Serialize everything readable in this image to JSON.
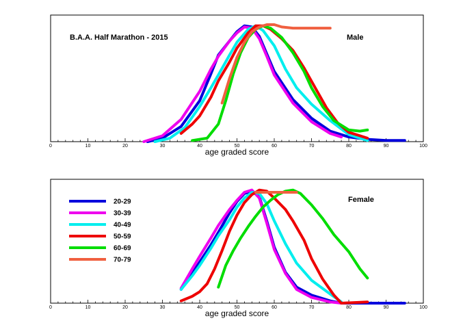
{
  "chart_data": [
    {
      "type": "line",
      "title": "B.A.A. Half Marathon - 2015",
      "panel_label": "Male",
      "xlabel": "age graded score",
      "ylabel": "",
      "xlim": [
        0,
        100
      ],
      "ylim": [
        0,
        1
      ],
      "x_ticks": [
        0,
        10,
        20,
        30,
        40,
        50,
        60,
        70,
        80,
        90,
        100
      ],
      "grid": false,
      "legend": null,
      "series": [
        {
          "name": "20-29",
          "color": "#0000dd",
          "points": [
            [
              26,
              0
            ],
            [
              30,
              0.03
            ],
            [
              35,
              0.13
            ],
            [
              40,
              0.35
            ],
            [
              43,
              0.58
            ],
            [
              45,
              0.74
            ],
            [
              48,
              0.86
            ],
            [
              50,
              0.94
            ],
            [
              52,
              0.99
            ],
            [
              54,
              0.98
            ],
            [
              56,
              0.9
            ],
            [
              58,
              0.75
            ],
            [
              60,
              0.6
            ],
            [
              65,
              0.36
            ],
            [
              70,
              0.2
            ],
            [
              75,
              0.09
            ],
            [
              80,
              0.04
            ],
            [
              85,
              0.02
            ],
            [
              90,
              0.01
            ],
            [
              95,
              0.01
            ]
          ]
        },
        {
          "name": "30-39",
          "color": "#ee00ee",
          "points": [
            [
              25,
              0
            ],
            [
              30,
              0.05
            ],
            [
              35,
              0.19
            ],
            [
              40,
              0.43
            ],
            [
              43,
              0.62
            ],
            [
              45,
              0.73
            ],
            [
              48,
              0.86
            ],
            [
              50,
              0.93
            ],
            [
              52,
              0.98
            ],
            [
              54,
              0.97
            ],
            [
              56,
              0.88
            ],
            [
              58,
              0.73
            ],
            [
              60,
              0.57
            ],
            [
              65,
              0.33
            ],
            [
              70,
              0.17
            ],
            [
              75,
              0.07
            ],
            [
              78,
              0.04
            ]
          ]
        },
        {
          "name": "40-49",
          "color": "#00eeee",
          "points": [
            [
              28,
              0
            ],
            [
              32,
              0.03
            ],
            [
              36,
              0.12
            ],
            [
              40,
              0.3
            ],
            [
              43,
              0.46
            ],
            [
              45,
              0.57
            ],
            [
              48,
              0.74
            ],
            [
              50,
              0.85
            ],
            [
              53,
              0.96
            ],
            [
              55,
              0.99
            ],
            [
              57,
              0.95
            ],
            [
              60,
              0.82
            ],
            [
              63,
              0.62
            ],
            [
              66,
              0.46
            ],
            [
              70,
              0.32
            ],
            [
              75,
              0.18
            ],
            [
              80,
              0.06
            ],
            [
              85,
              0.01
            ]
          ]
        },
        {
          "name": "50-59",
          "color": "#ee0000",
          "points": [
            [
              35,
              0.07
            ],
            [
              38,
              0.15
            ],
            [
              40,
              0.22
            ],
            [
              43,
              0.38
            ],
            [
              45,
              0.52
            ],
            [
              48,
              0.68
            ],
            [
              50,
              0.8
            ],
            [
              53,
              0.93
            ],
            [
              55,
              0.99
            ],
            [
              57,
              0.99
            ],
            [
              59,
              0.96
            ],
            [
              62,
              0.88
            ],
            [
              65,
              0.78
            ],
            [
              68,
              0.63
            ],
            [
              71,
              0.46
            ],
            [
              74,
              0.29
            ],
            [
              77,
              0.16
            ],
            [
              80,
              0.08
            ],
            [
              83,
              0.05
            ],
            [
              85,
              0.03
            ]
          ]
        },
        {
          "name": "60-69",
          "color": "#00dd00",
          "points": [
            [
              38,
              0.01
            ],
            [
              42,
              0.03
            ],
            [
              45,
              0.15
            ],
            [
              47,
              0.35
            ],
            [
              49,
              0.58
            ],
            [
              51,
              0.76
            ],
            [
              53,
              0.89
            ],
            [
              55,
              0.96
            ],
            [
              57,
              0.99
            ],
            [
              59,
              0.97
            ],
            [
              62,
              0.89
            ],
            [
              65,
              0.76
            ],
            [
              68,
              0.6
            ],
            [
              70,
              0.46
            ],
            [
              73,
              0.3
            ],
            [
              76,
              0.18
            ],
            [
              80,
              0.1
            ],
            [
              83,
              0.09
            ],
            [
              85,
              0.1
            ]
          ]
        },
        {
          "name": "70-79",
          "color": "#f06040",
          "points": [
            [
              46,
              0.33
            ],
            [
              48,
              0.54
            ],
            [
              50,
              0.72
            ],
            [
              52,
              0.85
            ],
            [
              54,
              0.94
            ],
            [
              56,
              0.98
            ],
            [
              58,
              1.0
            ],
            [
              60,
              1.0
            ],
            [
              62,
              0.98
            ],
            [
              65,
              0.97
            ],
            [
              70,
              0.97
            ],
            [
              75,
              0.97
            ]
          ]
        }
      ]
    },
    {
      "type": "line",
      "title": "",
      "panel_label": "Female",
      "xlabel": "age graded score",
      "ylabel": "",
      "xlim": [
        0,
        100
      ],
      "ylim": [
        0,
        1
      ],
      "x_ticks": [
        0,
        10,
        20,
        30,
        40,
        50,
        60,
        70,
        80,
        90,
        100
      ],
      "grid": false,
      "legend": "top-left",
      "series": [
        {
          "name": "20-29",
          "color": "#0000dd",
          "points": [
            [
              35,
              0.12
            ],
            [
              38,
              0.26
            ],
            [
              40,
              0.36
            ],
            [
              43,
              0.51
            ],
            [
              45,
              0.62
            ],
            [
              48,
              0.79
            ],
            [
              50,
              0.89
            ],
            [
              52,
              0.96
            ],
            [
              54,
              0.98
            ],
            [
              56,
              0.93
            ],
            [
              58,
              0.72
            ],
            [
              60,
              0.49
            ],
            [
              63,
              0.27
            ],
            [
              66,
              0.14
            ],
            [
              70,
              0.07
            ],
            [
              75,
              0.02
            ],
            [
              78,
              0
            ],
            [
              85,
              0
            ],
            [
              90,
              0
            ],
            [
              95,
              0
            ]
          ]
        },
        {
          "name": "30-39",
          "color": "#ee00ee",
          "points": [
            [
              35,
              0.13
            ],
            [
              38,
              0.3
            ],
            [
              40,
              0.41
            ],
            [
              43,
              0.57
            ],
            [
              45,
              0.68
            ],
            [
              48,
              0.82
            ],
            [
              50,
              0.9
            ],
            [
              52,
              0.97
            ],
            [
              54,
              0.99
            ],
            [
              56,
              0.92
            ],
            [
              58,
              0.7
            ],
            [
              60,
              0.47
            ],
            [
              63,
              0.26
            ],
            [
              66,
              0.12
            ],
            [
              70,
              0.05
            ],
            [
              75,
              0.01
            ],
            [
              78,
              0
            ]
          ]
        },
        {
          "name": "40-49",
          "color": "#00eeee",
          "points": [
            [
              35,
              0.12
            ],
            [
              38,
              0.24
            ],
            [
              40,
              0.33
            ],
            [
              43,
              0.48
            ],
            [
              45,
              0.59
            ],
            [
              48,
              0.73
            ],
            [
              50,
              0.84
            ],
            [
              52,
              0.92
            ],
            [
              54,
              0.97
            ],
            [
              56,
              0.96
            ],
            [
              58,
              0.87
            ],
            [
              60,
              0.72
            ],
            [
              63,
              0.52
            ],
            [
              66,
              0.35
            ],
            [
              70,
              0.2
            ],
            [
              75,
              0.08
            ],
            [
              78,
              0.01
            ]
          ]
        },
        {
          "name": "50-59",
          "color": "#ee0000",
          "points": [
            [
              35,
              0.02
            ],
            [
              38,
              0.06
            ],
            [
              40,
              0.1
            ],
            [
              42,
              0.17
            ],
            [
              44,
              0.3
            ],
            [
              46,
              0.46
            ],
            [
              48,
              0.63
            ],
            [
              50,
              0.77
            ],
            [
              52,
              0.88
            ],
            [
              54,
              0.95
            ],
            [
              56,
              0.99
            ],
            [
              58,
              0.98
            ],
            [
              60,
              0.92
            ],
            [
              63,
              0.82
            ],
            [
              65,
              0.72
            ],
            [
              68,
              0.55
            ],
            [
              70,
              0.39
            ],
            [
              73,
              0.21
            ],
            [
              76,
              0.07
            ],
            [
              78,
              0
            ],
            [
              85,
              0.01
            ]
          ]
        },
        {
          "name": "60-69",
          "color": "#00dd00",
          "points": [
            [
              45,
              0.14
            ],
            [
              47,
              0.33
            ],
            [
              49,
              0.46
            ],
            [
              51,
              0.57
            ],
            [
              53,
              0.67
            ],
            [
              55,
              0.76
            ],
            [
              57,
              0.84
            ],
            [
              59,
              0.9
            ],
            [
              61,
              0.95
            ],
            [
              63,
              0.98
            ],
            [
              65,
              0.99
            ],
            [
              67,
              0.96
            ],
            [
              70,
              0.86
            ],
            [
              73,
              0.74
            ],
            [
              76,
              0.6
            ],
            [
              80,
              0.45
            ],
            [
              83,
              0.3
            ],
            [
              85,
              0.22
            ]
          ]
        },
        {
          "name": "70-79",
          "color": "#f06040",
          "points": [
            [
              55,
              0.97
            ],
            [
              57,
              0.97
            ],
            [
              60,
              0.97
            ],
            [
              63,
              0.97
            ],
            [
              65,
              0.97
            ],
            [
              66,
              0.97
            ]
          ]
        }
      ]
    }
  ]
}
